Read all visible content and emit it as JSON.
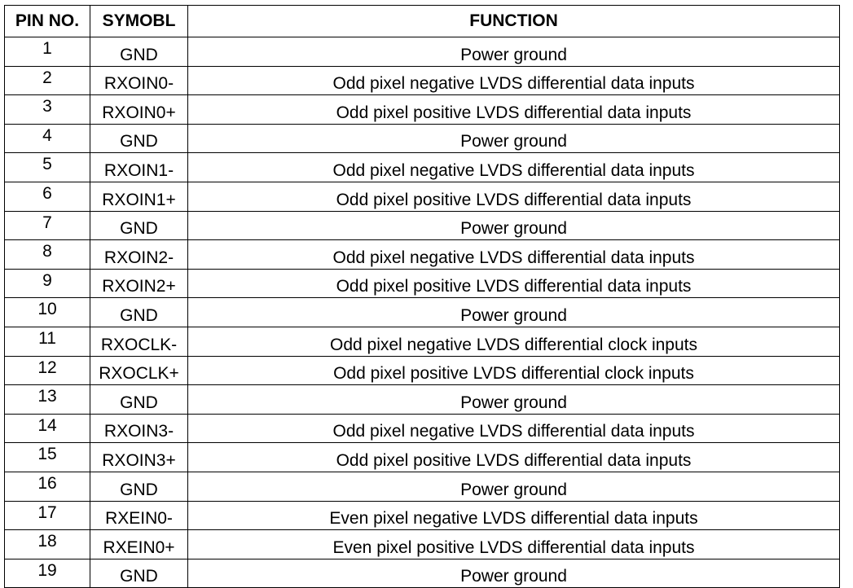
{
  "headers": [
    "PIN NO.",
    "SYMOBL",
    "FUNCTION"
  ],
  "rows": [
    [
      "1",
      "GND",
      "Power ground"
    ],
    [
      "2",
      "RXOIN0-",
      "Odd pixel negative LVDS differential data inputs"
    ],
    [
      "3",
      "RXOIN0+",
      "Odd pixel positive LVDS differential data inputs"
    ],
    [
      "4",
      "GND",
      "Power ground"
    ],
    [
      "5",
      "RXOIN1-",
      "Odd pixel negative LVDS differential data inputs"
    ],
    [
      "6",
      "RXOIN1+",
      "Odd pixel positive LVDS differential data inputs"
    ],
    [
      "7",
      "GND",
      "Power ground"
    ],
    [
      "8",
      "RXOIN2-",
      "Odd pixel negative LVDS differential data inputs"
    ],
    [
      "9",
      "RXOIN2+",
      "Odd pixel positive LVDS differential data inputs"
    ],
    [
      "10",
      "GND",
      "Power ground"
    ],
    [
      "11",
      "RXOCLK-",
      "Odd pixel negative LVDS differential clock inputs"
    ],
    [
      "12",
      "RXOCLK+",
      "Odd pixel positive LVDS differential clock inputs"
    ],
    [
      "13",
      "GND",
      "Power ground"
    ],
    [
      "14",
      "RXOIN3-",
      "Odd pixel negative LVDS differential data inputs"
    ],
    [
      "15",
      "RXOIN3+",
      "Odd pixel positive LVDS differential data inputs"
    ],
    [
      "16",
      "GND",
      "Power ground"
    ],
    [
      "17",
      "RXEIN0-",
      "Even pixel negative LVDS differential data inputs"
    ],
    [
      "18",
      "RXEIN0+",
      "Even pixel positive LVDS differential data inputs"
    ],
    [
      "19",
      "GND",
      "Power ground"
    ]
  ]
}
